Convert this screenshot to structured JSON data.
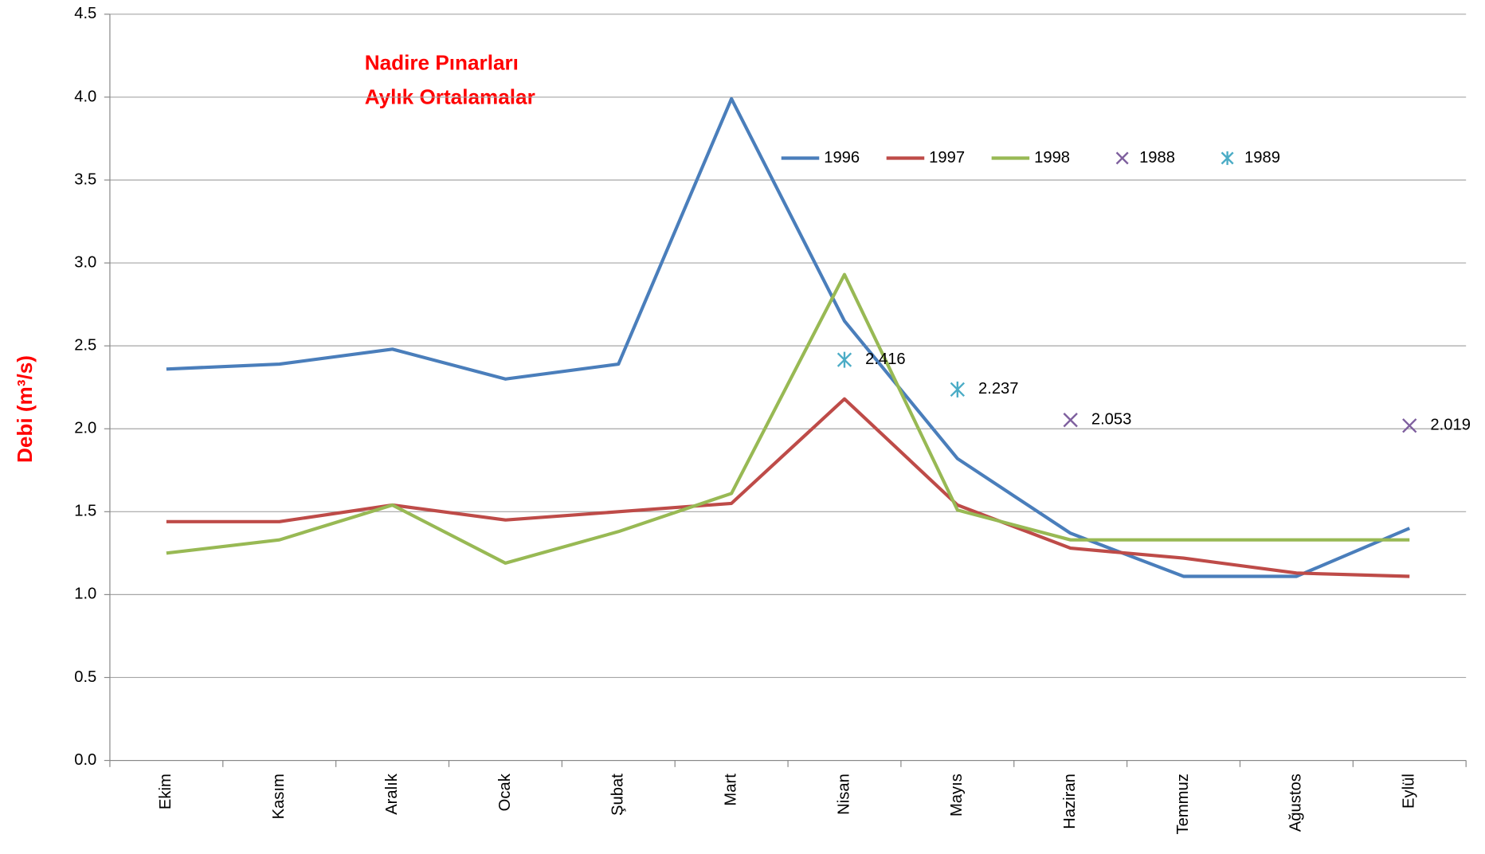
{
  "chart_data": {
    "type": "line",
    "title": [
      "Nadire Pınarları",
      "Aylık Ortalamalar"
    ],
    "y_label": "Debi (m³/s)",
    "categories": [
      "Ekim",
      "Kasım",
      "Aralık",
      "Ocak",
      "Şubat",
      "Mart",
      "Nisan",
      "Mayıs",
      "Haziran",
      "Temmuz",
      "Ağustos",
      "Eylül"
    ],
    "series": [
      {
        "name": "1996",
        "color": "#4a7ebb",
        "values": [
          2.36,
          2.39,
          2.48,
          2.3,
          2.39,
          3.99,
          2.65,
          1.82,
          1.37,
          1.11,
          1.11,
          1.4
        ]
      },
      {
        "name": "1997",
        "color": "#be4b48",
        "values": [
          1.44,
          1.44,
          1.54,
          1.45,
          1.5,
          1.55,
          2.18,
          1.54,
          1.28,
          1.22,
          1.13,
          1.11
        ]
      },
      {
        "name": "1998",
        "color": "#98b954",
        "values": [
          1.25,
          1.33,
          1.54,
          1.19,
          1.38,
          1.61,
          2.93,
          1.51,
          1.33,
          1.33,
          1.33,
          1.33
        ]
      },
      {
        "name": "1988",
        "color": "#7e5f9e",
        "marker": "x",
        "values": [
          null,
          null,
          null,
          null,
          null,
          null,
          null,
          null,
          2.053,
          null,
          null,
          2.019
        ]
      },
      {
        "name": "1989",
        "color": "#4bacc6",
        "marker": "asterisk",
        "values": [
          null,
          null,
          null,
          null,
          null,
          null,
          2.416,
          2.237,
          null,
          null,
          null,
          null
        ]
      }
    ],
    "ylim": [
      0,
      4.5
    ],
    "yticks": [
      {
        "value": 0,
        "label": "0.0"
      },
      {
        "value": 0.5,
        "label": "0.5"
      },
      {
        "value": 1,
        "label": "1.0"
      },
      {
        "value": 1.5,
        "label": "1.5"
      },
      {
        "value": 2,
        "label": "2.0"
      },
      {
        "value": 2.5,
        "label": "2.5"
      },
      {
        "value": 3,
        "label": "3.0"
      },
      {
        "value": 3.5,
        "label": "3.5"
      },
      {
        "value": 4,
        "label": "4.0"
      },
      {
        "value": 4.5,
        "label": "4.5"
      }
    ],
    "grid": true
  }
}
